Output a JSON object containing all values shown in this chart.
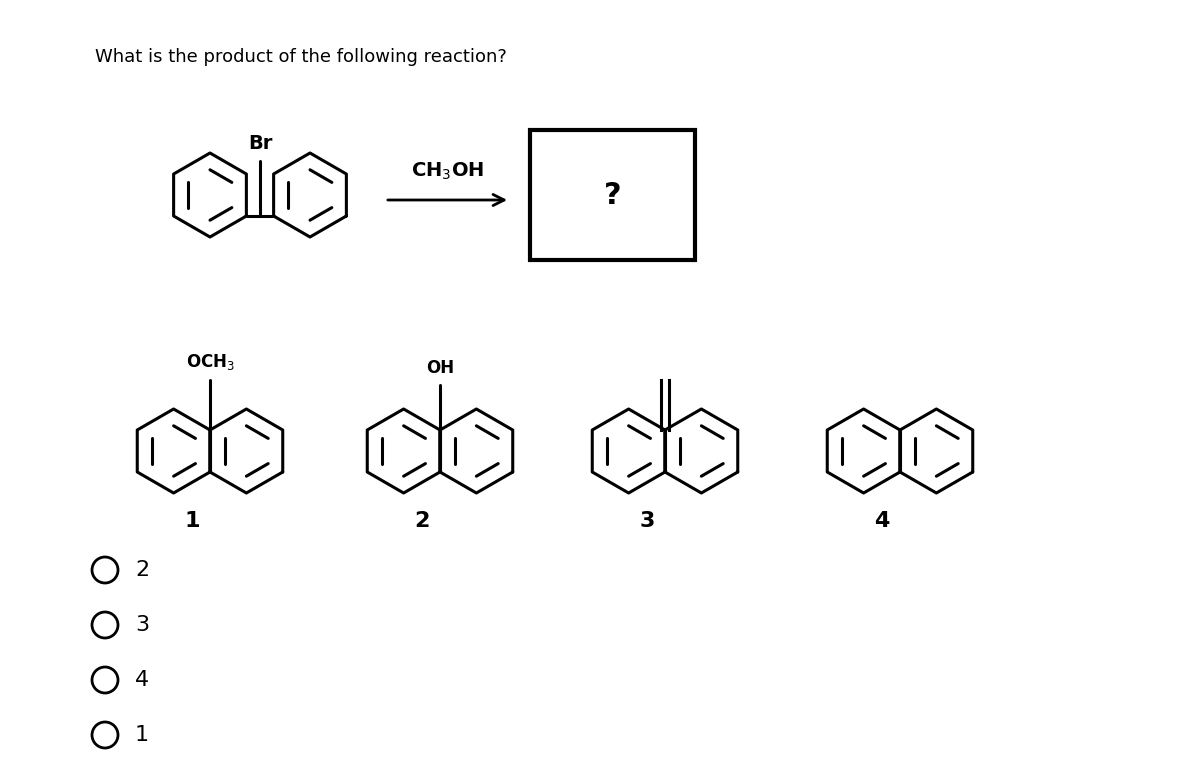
{
  "title": "What is the product of the following reaction?",
  "title_fontsize": 13,
  "bg_color": "#ffffff",
  "choices": [
    "2",
    "3",
    "4",
    "1"
  ],
  "reactant_label": "Br",
  "arrow_label": "CH₃OH",
  "question_mark": "?"
}
